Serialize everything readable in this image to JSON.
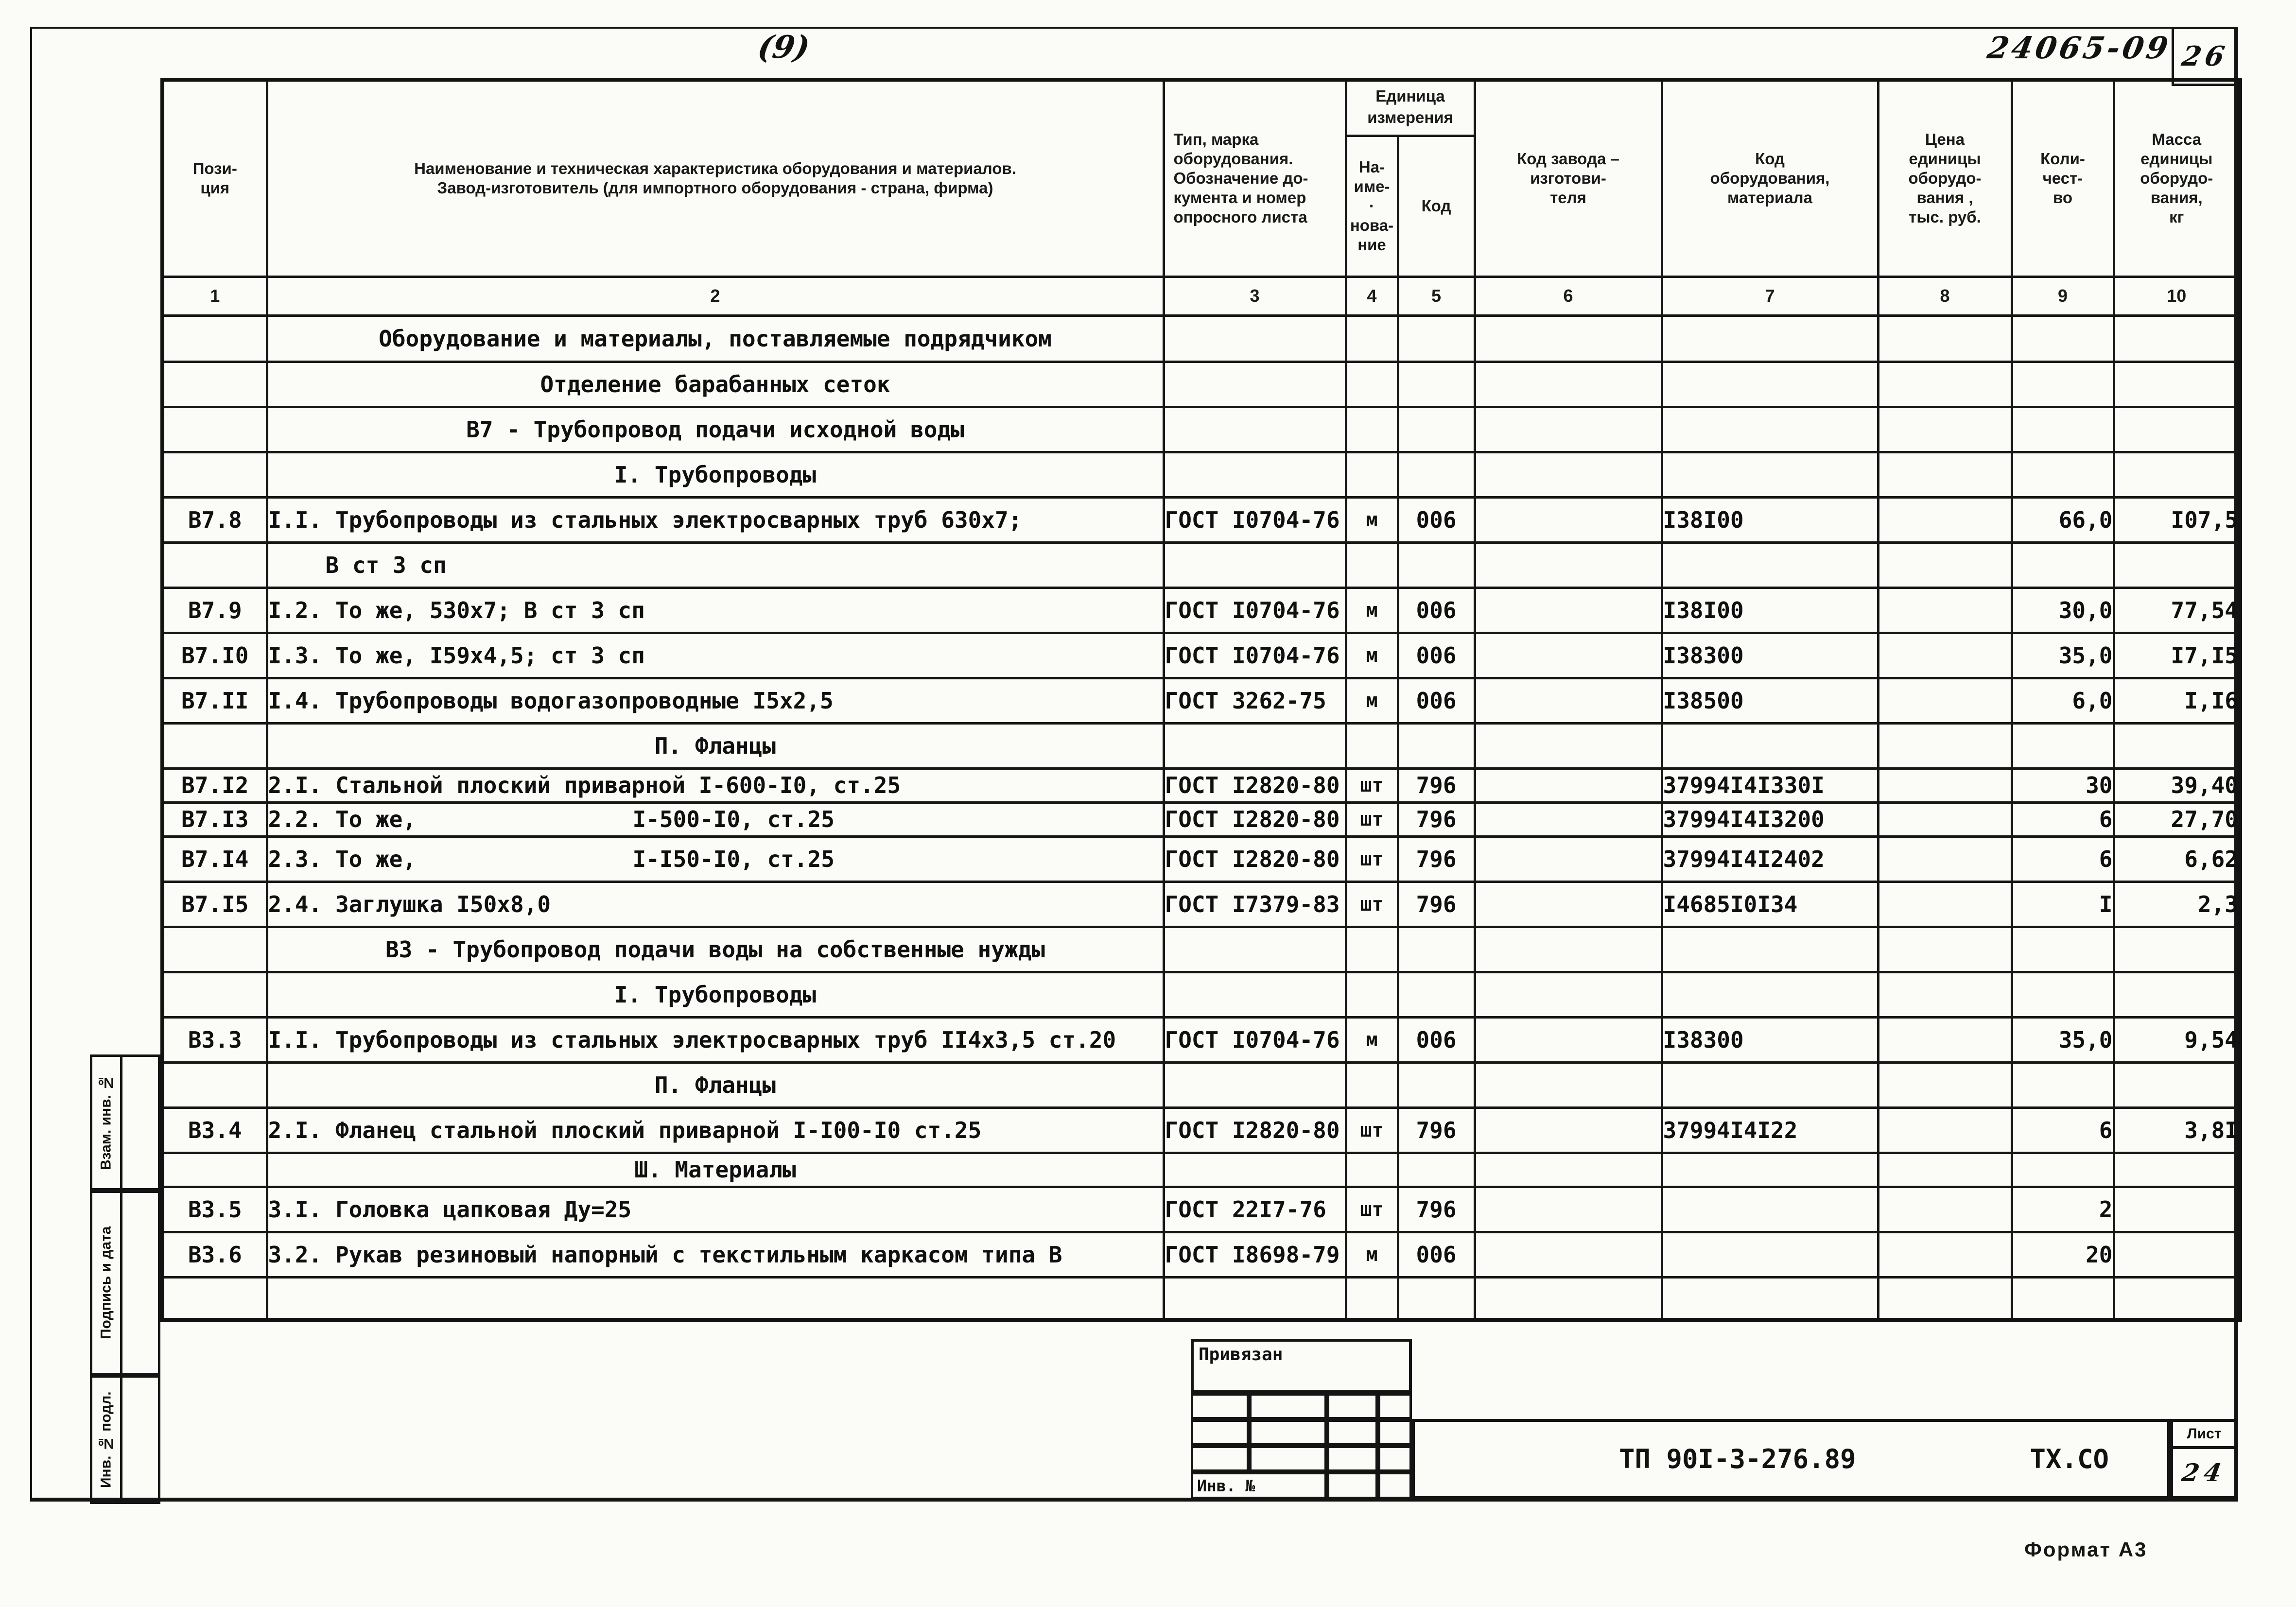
{
  "sheet": {
    "page_note": "(9)",
    "doc_no_handwritten": "24065-09",
    "page_no": "26",
    "format_label": "Формат А3"
  },
  "header": {
    "c1": [
      "Пози-",
      "ция"
    ],
    "c2": [
      "Наименование и техническая характеристика  оборудования и материалов.",
      "Завод-изготовитель  (для импортного оборудования -  страна, фирма)"
    ],
    "c3": [
      "Тип,    марка",
      "оборудования.",
      "Обозначение  до-",
      "кумента  и  номер",
      "опросного листа"
    ],
    "unit_group": [
      "Единица",
      "измерения"
    ],
    "c4": [
      "На-",
      "име- ·",
      "нова-",
      "ние"
    ],
    "c5": "Код",
    "c6": [
      "Код  завода –",
      "изготови-",
      "теля"
    ],
    "c7": [
      "Код",
      "оборудования,",
      "материала"
    ],
    "c8": [
      "Цена",
      "единицы",
      "оборудо-",
      "вания ,",
      "тыс. руб."
    ],
    "c9": [
      "Коли-",
      "чест-",
      "во"
    ],
    "c10": [
      "Масса",
      "единицы",
      "оборудо-",
      "вания,",
      "кг"
    ],
    "numbers": [
      "1",
      "2",
      "3",
      "4",
      "5",
      "6",
      "7",
      "8",
      "9",
      "10"
    ]
  },
  "rows": [
    {
      "type": "section",
      "name": "Оборудование и материалы, поставляемые подрядчиком"
    },
    {
      "type": "section",
      "name": "Отделение барабанных сеток"
    },
    {
      "type": "section",
      "name": "В7 - Трубопровод подачи исходной воды"
    },
    {
      "type": "section",
      "name": "I. Трубопроводы"
    },
    {
      "type": "item",
      "pos": "В7.8",
      "name": "I.I. Трубопроводы из стальных электросварных труб 630х7;",
      "doc": "ГОСТ I0704-76",
      "unit": "м",
      "ucode": "006",
      "mcode": "I38I00",
      "qty": "66,0",
      "mass": "I07,5"
    },
    {
      "type": "cont",
      "name": "В ст 3 сп"
    },
    {
      "type": "item",
      "pos": "В7.9",
      "name": "I.2. То же, 530х7; В ст 3 сп",
      "doc": "ГОСТ I0704-76",
      "unit": "м",
      "ucode": "006",
      "mcode": "I38I00",
      "qty": "30,0",
      "mass": "77,54"
    },
    {
      "type": "item",
      "pos": "В7.I0",
      "name": "I.3. То же, I59х4,5; ст 3 сп",
      "doc": "ГОСТ I0704-76",
      "unit": "м",
      "ucode": "006",
      "mcode": "I38300",
      "qty": "35,0",
      "mass": "I7,I5"
    },
    {
      "type": "item",
      "pos": "В7.II",
      "name": "I.4. Трубопроводы водогазопроводные I5х2,5",
      "doc": "ГОСТ 3262-75",
      "unit": "м",
      "ucode": "006",
      "mcode": "I38500",
      "qty": "6,0",
      "mass": "I,I6"
    },
    {
      "type": "section",
      "name": "П. Фланцы"
    },
    {
      "type": "item",
      "pos": "В7.I2",
      "name": "2.I. Стальной плоский приварной I-600-I0, ст.25",
      "doc": "ГОСТ I2820-80",
      "unit": "шт",
      "ucode": "796",
      "mcode": "37994I4I330I",
      "qty": "30",
      "mass": "39,40"
    },
    {
      "type": "item",
      "pos": "В7.I3",
      "name": "2.2. То же,",
      "name2": "I-500-I0, ст.25",
      "doc": "ГОСТ I2820-80",
      "unit": "шт",
      "ucode": "796",
      "mcode": "37994I4I3200",
      "qty": "6",
      "mass": "27,70"
    },
    {
      "type": "item",
      "pos": "В7.I4",
      "name": "2.3. То же,",
      "name2": "I-I50-I0, ст.25",
      "doc": "ГОСТ I2820-80",
      "unit": "шт",
      "ucode": "796",
      "mcode": "37994I4I2402",
      "qty": "6",
      "mass": "6,62"
    },
    {
      "type": "item",
      "pos": "В7.I5",
      "name": "2.4. Заглушка I50х8,0",
      "doc": "ГОСТ I7379-83",
      "unit": "шт",
      "ucode": "796",
      "mcode": "I4685I0I34",
      "qty": "I",
      "mass": "2,3"
    },
    {
      "type": "section",
      "name": "ВЗ - Трубопровод подачи воды на собственные нужды"
    },
    {
      "type": "section",
      "name": "I. Трубопроводы"
    },
    {
      "type": "item",
      "pos": "В3.3",
      "name": "I.I. Трубопроводы из стальных электросварных труб II4х3,5 ст.20",
      "doc": "ГОСТ I0704-76",
      "unit": "м",
      "ucode": "006",
      "mcode": "I38300",
      "qty": "35,0",
      "mass": "9,54"
    },
    {
      "type": "section",
      "name": "П. Фланцы"
    },
    {
      "type": "item",
      "pos": "В3.4",
      "name": "2.I. Фланец стальной плоский приварной I-I00-I0 ст.25",
      "doc": "ГОСТ I2820-80",
      "unit": "шт",
      "ucode": "796",
      "mcode": "37994I4I22",
      "qty": "6",
      "mass": "3,8I"
    },
    {
      "type": "section",
      "name": "Ш. Материалы"
    },
    {
      "type": "item",
      "pos": "В3.5",
      "name": "3.I. Головка цапковая Ду=25",
      "doc": "ГОСТ 22I7-76",
      "unit": "шт",
      "ucode": "796",
      "mcode": "",
      "qty": "2",
      "mass": ""
    },
    {
      "type": "item",
      "pos": "В3.6",
      "name": "3.2. Рукав резиновый напорный с текстильным каркасом типа В",
      "doc": "ГОСТ I8698-79",
      "unit": "м",
      "ucode": "006",
      "mcode": "",
      "qty": "20",
      "mass": ""
    },
    {
      "type": "empty"
    }
  ],
  "margin_labels": [
    "Взам. инв. №",
    "Подпись и дата",
    "Инв. № подл."
  ],
  "stamp": {
    "binding_label": "Привязан",
    "inv_label": "Инв. №",
    "doc_code": "ТП 90I-3-276.89",
    "mark_code": "ТХ.СО",
    "sheet_label": "Лист",
    "sheet_number": "24"
  }
}
